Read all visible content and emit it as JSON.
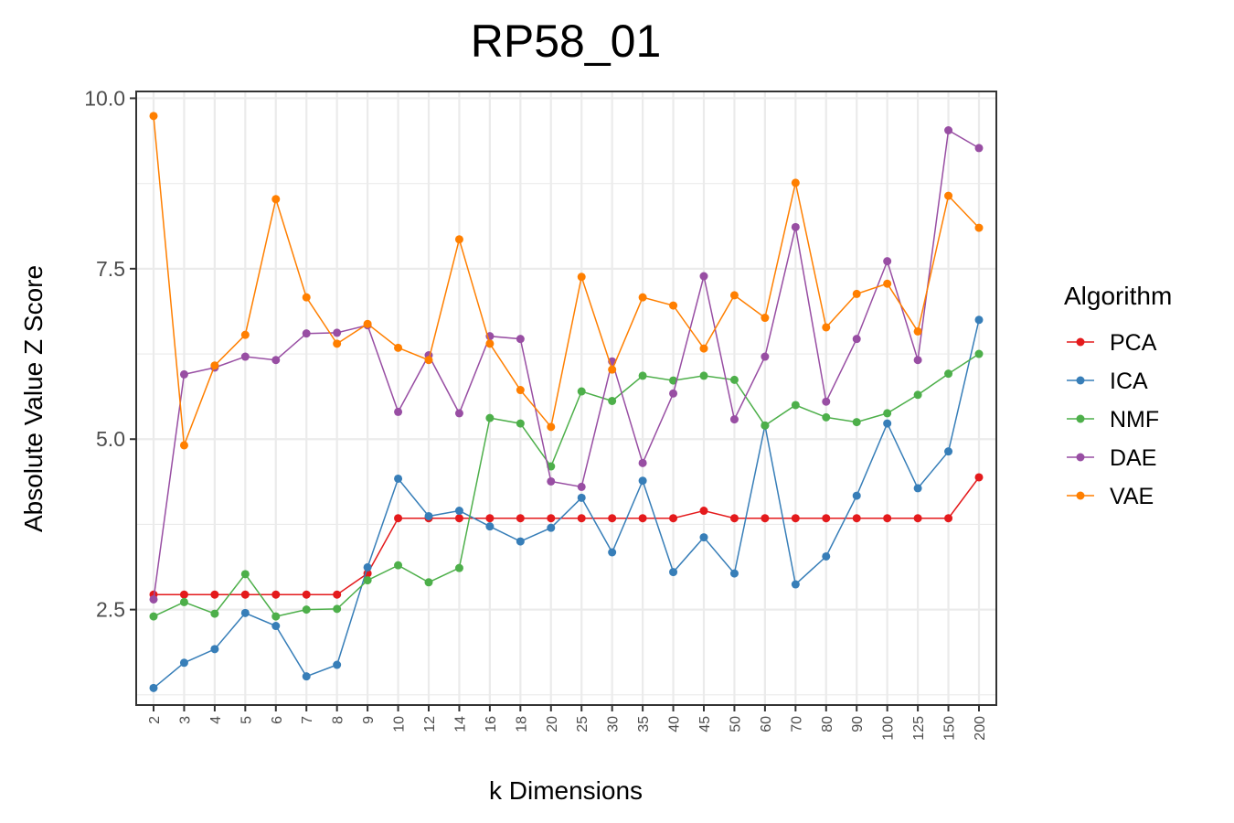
{
  "chart_data": {
    "type": "line",
    "title": "RP58_01",
    "xlabel": "k Dimensions",
    "ylabel": "Absolute Value Z Score",
    "ylim": [
      1.1,
      10.1
    ],
    "yticks": [
      "2.5",
      "5.0",
      "7.5",
      "10.0"
    ],
    "grid": true,
    "legend": {
      "title": "Algorithm",
      "placement": "right"
    },
    "categories": [
      "2",
      "3",
      "4",
      "5",
      "6",
      "7",
      "8",
      "9",
      "10",
      "12",
      "14",
      "16",
      "18",
      "20",
      "25",
      "30",
      "35",
      "40",
      "45",
      "50",
      "60",
      "70",
      "80",
      "90",
      "100",
      "125",
      "150",
      "200"
    ],
    "series": [
      {
        "name": "PCA",
        "color": "#e41a1c",
        "values": [
          2.72,
          2.72,
          2.72,
          2.72,
          2.72,
          2.72,
          2.72,
          3.03,
          3.84,
          3.84,
          3.84,
          3.84,
          3.84,
          3.84,
          3.84,
          3.84,
          3.84,
          3.84,
          3.95,
          3.84,
          3.84,
          3.84,
          3.84,
          3.84,
          3.84,
          3.84,
          3.84,
          4.44
        ]
      },
      {
        "name": "ICA",
        "color": "#377eb8",
        "values": [
          1.35,
          1.72,
          1.92,
          2.45,
          2.26,
          1.52,
          1.69,
          3.12,
          4.42,
          3.87,
          3.95,
          3.72,
          3.5,
          3.7,
          4.14,
          3.34,
          4.39,
          3.05,
          3.56,
          3.03,
          5.2,
          2.87,
          3.28,
          4.17,
          5.23,
          4.28,
          4.82,
          6.75
        ]
      },
      {
        "name": "NMF",
        "color": "#4daf4a",
        "values": [
          2.4,
          2.61,
          2.44,
          3.02,
          2.4,
          2.5,
          2.51,
          2.93,
          3.15,
          2.9,
          3.11,
          5.31,
          5.23,
          4.6,
          5.7,
          5.56,
          5.93,
          5.86,
          5.93,
          5.87,
          5.2,
          5.5,
          5.32,
          5.25,
          5.38,
          5.65,
          5.96,
          6.25
        ]
      },
      {
        "name": "DAE",
        "color": "#984ea3",
        "values": [
          2.65,
          5.95,
          6.05,
          6.21,
          6.16,
          6.55,
          6.56,
          6.67,
          5.4,
          6.23,
          5.38,
          6.51,
          6.47,
          4.38,
          4.3,
          6.14,
          4.65,
          5.67,
          7.39,
          5.29,
          6.21,
          8.11,
          5.55,
          6.47,
          7.61,
          6.16,
          9.53,
          9.27
        ]
      },
      {
        "name": "VAE",
        "color": "#ff7f00",
        "values": [
          9.74,
          4.91,
          6.08,
          6.53,
          8.52,
          7.08,
          6.4,
          6.69,
          6.34,
          6.16,
          7.93,
          6.4,
          5.72,
          5.18,
          7.38,
          6.02,
          7.08,
          6.96,
          6.33,
          7.11,
          6.78,
          8.76,
          6.64,
          7.13,
          7.28,
          6.58,
          8.57,
          8.1
        ]
      }
    ]
  }
}
